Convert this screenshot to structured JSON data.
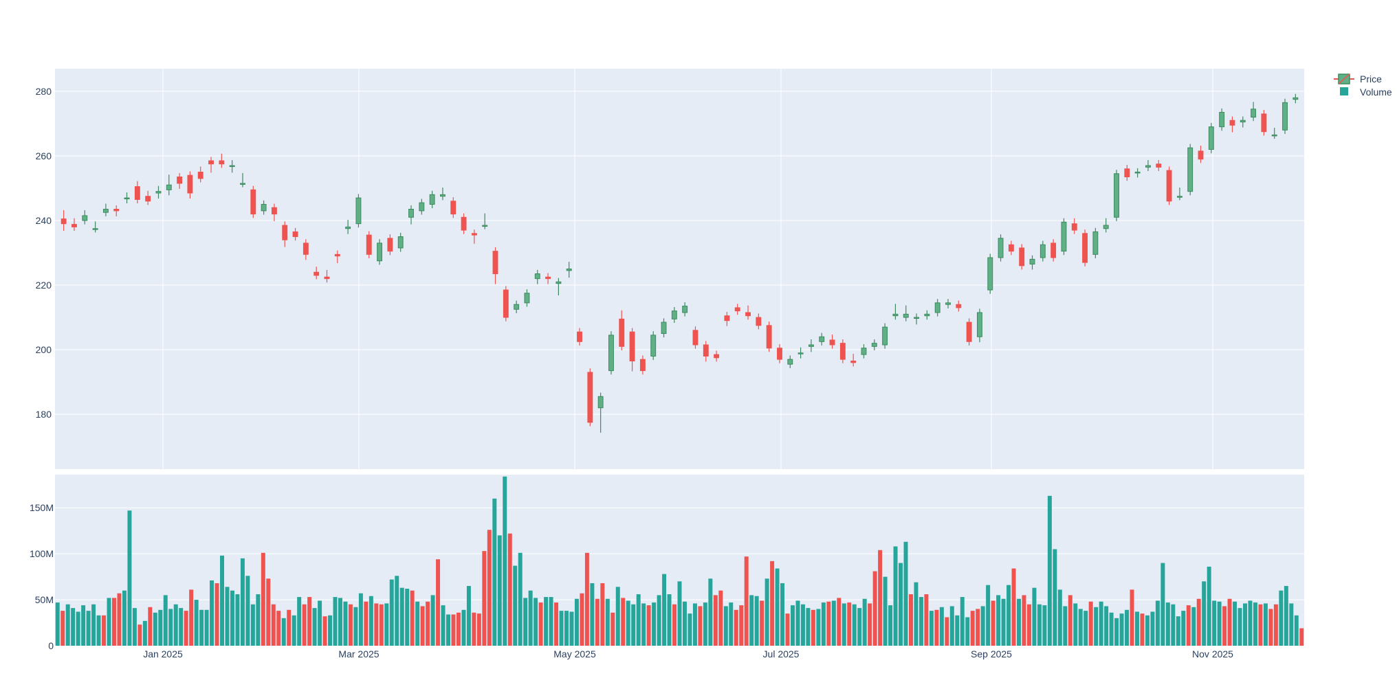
{
  "colors": {
    "plot_bg": "#e5ecf6",
    "grid": "#ffffff",
    "increasing": "#26a69a",
    "decreasing": "#ef5350",
    "candle_up_fill": "#5fb087",
    "candle_up_line": "#3d8a5f",
    "candle_down_fill": "#ef5350",
    "candle_down_line": "#ef5350",
    "text": "#2a3f5f"
  },
  "legend": {
    "items": [
      {
        "label": "Price",
        "icon": "candlestick-icon"
      },
      {
        "label": "Volume",
        "icon": "square-icon"
      }
    ]
  },
  "chart_data": {
    "type": "candlestick+bar",
    "x_ticks": [
      "Jan 2025",
      "Mar 2025",
      "May 2025",
      "Jul 2025",
      "Sep 2025",
      "Nov 2025"
    ],
    "price_axis": {
      "ticks": [
        180,
        200,
        220,
        240,
        260,
        280
      ],
      "range": [
        163,
        287
      ]
    },
    "volume_axis": {
      "ticks": [
        0,
        50,
        100,
        150
      ],
      "tick_labels": [
        "0",
        "50M",
        "100M",
        "150M"
      ],
      "unit": "M",
      "range": [
        0,
        186
      ]
    },
    "series": [
      {
        "name": "Price",
        "kind": "candlestick",
        "points": [
          [
            240.5,
            238,
            240,
            242,
            239
          ],
          [
            238.8,
            239.5,
            238,
            239,
            238
          ],
          [
            240,
            240.5,
            241.5,
            242,
            241.5
          ],
          [
            237.5,
            238.5,
            238,
            238.5,
            237.5
          ],
          [
            242.5,
            244,
            243.5,
            243.5,
            243.5
          ],
          [
            243.5,
            242.5,
            242.5,
            243.5,
            243
          ],
          [
            247,
            246.5,
            247.5,
            247,
            247
          ],
          [
            250.5,
            251,
            251,
            247,
            246.5
          ],
          [
            247.5,
            248,
            247.5,
            247,
            246
          ],
          [
            248.5,
            249,
            248,
            249.5,
            249
          ],
          [
            249.5,
            251.5,
            249,
            253,
            251
          ],
          [
            253.5,
            253,
            251,
            252.5,
            251.5
          ],
          [
            254,
            248,
            249,
            250,
            248.5
          ],
          [
            255,
            254,
            253.5,
            255.5,
            253
          ],
          [
            258.5,
            256,
            256,
            258,
            257.5
          ],
          [
            258.5,
            257.5,
            259.5,
            259.5,
            257.5
          ],
          [
            257,
            256,
            257.5,
            257.5,
            257
          ],
          [
            251.5,
            253.5,
            251.5,
            251.5,
            251.5
          ],
          [
            249.5,
            246,
            244,
            242.5,
            242
          ],
          [
            243,
            243.5,
            244.5,
            244,
            245
          ],
          [
            244,
            242.5,
            241.5,
            241,
            242
          ],
          [
            238.5,
            236,
            234,
            233,
            234
          ],
          [
            236.5,
            236,
            235.5,
            236,
            235
          ],
          [
            233,
            232.5,
            229,
            231.5,
            229.5
          ],
          [
            224,
            224.5,
            223.5,
            223.5,
            223
          ],
          [
            222.5,
            223,
            223.5,
            222,
            222
          ],
          [
            229.5,
            228.5,
            228,
            229.5,
            229
          ],
          [
            237.5,
            238,
            237,
            239,
            238
          ],
          [
            239,
            241,
            243,
            245.5,
            247
          ],
          [
            235.5,
            234,
            232.5,
            231.5,
            229.5
          ],
          [
            227.5,
            231,
            231,
            232.5,
            233
          ],
          [
            234.5,
            233,
            231,
            231,
            230.5
          ],
          [
            231.5,
            232.5,
            232.5,
            234.5,
            235
          ],
          [
            241,
            240,
            240,
            241.5,
            243.5
          ],
          [
            243,
            244,
            245.5,
            245,
            245.5
          ],
          [
            245,
            247,
            246.5,
            247,
            248
          ],
          [
            247.5,
            249,
            248,
            247.5,
            248
          ],
          [
            246,
            245,
            243.5,
            242,
            242
          ],
          [
            241,
            240,
            241,
            238.5,
            237
          ],
          [
            236,
            235.5,
            234.5,
            234,
            235.5
          ],
          [
            238.5,
            240.5,
            239.5,
            241,
            238.5
          ],
          [
            230.5,
            226,
            222.5,
            221.5,
            223.5
          ],
          [
            218.5,
            216,
            214,
            211.5,
            210
          ],
          [
            212.5,
            213.5,
            213.5,
            214,
            214
          ],
          [
            214.5,
            216.5,
            216.5,
            216.5,
            217.5
          ],
          [
            222,
            221.5,
            222.5,
            223,
            223.5
          ],
          [
            222.5,
            222,
            221.5,
            221.5,
            222
          ],
          [
            220.5,
            219,
            218,
            220,
            221
          ],
          [
            224.5,
            223.5,
            225.5,
            226,
            225
          ],
          [
            205.5,
            202.5,
            203.5,
            204,
            202.5
          ],
          [
            193,
            188.5,
            182,
            180,
            177.5
          ],
          [
            182,
            178.5,
            175.5,
            183,
            185.5
          ],
          [
            193.5,
            198,
            195,
            201.5,
            204.5
          ],
          [
            209.5,
            211,
            205.5,
            205.5,
            201
          ],
          [
            205.5,
            201.5,
            203,
            194.5,
            196.5
          ],
          [
            197,
            196,
            197,
            196.5,
            193.5
          ],
          [
            198,
            200.5,
            201.5,
            204.5,
            204.5
          ],
          [
            205,
            207,
            206.5,
            208,
            208.5
          ],
          [
            209.5,
            210.5,
            210.5,
            211,
            212
          ],
          [
            211.5,
            212,
            212,
            212.5,
            213.5
          ],
          [
            206,
            205,
            203.5,
            202.5,
            201.5
          ],
          [
            201.5,
            199,
            197.5,
            198,
            198
          ],
          [
            198.5,
            198.5,
            198,
            197.5,
            197.5
          ],
          [
            210.5,
            209.5,
            208.5,
            209,
            209
          ],
          [
            213,
            212,
            213,
            212.5,
            212
          ],
          [
            211.5,
            212.5,
            211.5,
            211,
            210.5
          ],
          [
            210,
            208.5,
            208,
            208,
            207.5
          ],
          [
            207.5,
            205,
            204.5,
            202.5,
            200.5
          ],
          [
            200.5,
            199,
            198.5,
            198,
            197
          ],
          [
            195.5,
            196.5,
            196,
            196.5,
            197
          ],
          [
            199,
            198.5,
            199.5,
            199.5,
            199
          ],
          [
            201,
            200.5,
            202,
            202,
            201.5
          ],
          [
            202.5,
            203,
            204,
            204,
            204
          ],
          [
            203,
            203.5,
            202.5,
            201.5,
            201.5
          ],
          [
            202,
            200.5,
            200,
            198.5,
            197
          ],
          [
            196.5,
            197.5,
            197.5,
            196.5,
            196
          ],
          [
            198.5,
            198.5,
            199.5,
            200,
            200.5
          ],
          [
            201,
            202,
            201.5,
            201.5,
            202
          ],
          [
            201.5,
            203,
            203.5,
            205,
            207
          ],
          [
            210.5,
            212,
            213,
            212,
            211
          ],
          [
            210,
            211,
            212,
            212.5,
            211
          ],
          [
            210,
            209,
            209,
            209.5,
            210
          ],
          [
            210.5,
            210.5,
            211,
            211,
            211
          ],
          [
            211.5,
            212.5,
            213.5,
            214,
            214.5
          ],
          [
            214,
            214.5,
            214,
            214.5,
            214.5
          ],
          [
            214,
            214,
            213.5,
            213,
            213
          ],
          [
            208.5,
            208,
            206,
            204,
            202.5
          ],
          [
            204,
            203.5,
            203.5,
            205.5,
            211.5
          ],
          [
            218.5,
            220,
            222.5,
            228,
            228.5
          ],
          [
            228.5,
            229,
            229.5,
            233,
            234.5
          ],
          [
            232.5,
            232.5,
            231.5,
            231,
            230.5
          ],
          [
            231.5,
            230.5,
            229,
            227.5,
            226
          ],
          [
            226.5,
            226,
            227.5,
            227.5,
            228
          ],
          [
            228.5,
            229.5,
            230.5,
            232,
            232.5
          ],
          [
            233,
            233,
            232.5,
            230,
            228.5
          ],
          [
            230.5,
            232,
            236.5,
            238.5,
            239.5
          ],
          [
            239,
            239.5,
            239,
            238,
            237
          ],
          [
            236,
            233,
            230,
            228.5,
            227
          ],
          [
            229.5,
            230.5,
            232.5,
            234,
            236.5
          ],
          [
            237.5,
            237.5,
            239,
            239.5,
            238.5
          ],
          [
            241,
            243.5,
            245.5,
            246.5,
            254.5
          ],
          [
            256,
            255,
            254.5,
            254,
            253.5
          ],
          [
            255,
            254.5,
            255,
            255,
            255
          ],
          [
            256.5,
            256.5,
            257.5,
            257.5,
            257
          ],
          [
            257.5,
            257.5,
            257.5,
            257,
            256.5
          ],
          [
            255.5,
            253,
            249.5,
            247.5,
            246
          ],
          [
            247.5,
            248.5,
            249,
            248.5,
            247.5
          ],
          [
            249,
            251.5,
            254.5,
            260,
            262.5
          ],
          [
            261.5,
            262,
            261.5,
            259.5,
            259
          ],
          [
            262,
            264,
            266.5,
            268.5,
            269
          ],
          [
            269,
            269.5,
            270,
            271.5,
            273.5
          ],
          [
            271,
            270,
            269.5,
            268.5,
            269.5
          ],
          [
            270.5,
            270.5,
            270,
            270.5,
            271
          ],
          [
            272,
            273.5,
            275,
            275.5,
            274.5
          ],
          [
            273,
            272.5,
            271.5,
            269,
            267.5
          ],
          [
            266.5,
            267.5,
            267,
            266.5,
            266.5
          ],
          [
            268,
            271,
            273.5,
            275.5,
            276.5
          ],
          [
            277.5,
            277.5,
            278
          ]
        ]
      },
      {
        "name": "Volume",
        "kind": "bar",
        "values": [
          47,
          38,
          45,
          41,
          37,
          44,
          38,
          45,
          33,
          33,
          52,
          52,
          57,
          60,
          147,
          41,
          23,
          27,
          42,
          36,
          39,
          55,
          40,
          45,
          41,
          38,
          61,
          50,
          39,
          39,
          71,
          68,
          98,
          64,
          60,
          56,
          95,
          76,
          45,
          56,
          101,
          73,
          45,
          38,
          30,
          39,
          33,
          53,
          45,
          53,
          41,
          49,
          32,
          33,
          53,
          52,
          48,
          45,
          42,
          57,
          48,
          54,
          46,
          45,
          46,
          72,
          76,
          63,
          62,
          60,
          48,
          43,
          48,
          55,
          94,
          44,
          34,
          34,
          36,
          39,
          65,
          36,
          35,
          103,
          126,
          160,
          120,
          184,
          122,
          87,
          101,
          52,
          60,
          52,
          47,
          53,
          53,
          47,
          38,
          38,
          37,
          51,
          57,
          101,
          68,
          51,
          68,
          51,
          36,
          64,
          52,
          49,
          45,
          56,
          46,
          44,
          47,
          55,
          78,
          56,
          45,
          70,
          48,
          35,
          46,
          43,
          47,
          73,
          55,
          60,
          43,
          47,
          39,
          44,
          97,
          55,
          54,
          49,
          73,
          92,
          84,
          68,
          35,
          44,
          49,
          45,
          41,
          39,
          40,
          47,
          48,
          49,
          52,
          46,
          47,
          45,
          41,
          51,
          46,
          81,
          104,
          75,
          44,
          108,
          90,
          113,
          56,
          69,
          53,
          56,
          38,
          39,
          42,
          31,
          43,
          33,
          53,
          31,
          38,
          40,
          43,
          66,
          49,
          55,
          51,
          66,
          84,
          51,
          55,
          45,
          63,
          45,
          44,
          163,
          105,
          61,
          43,
          55,
          46,
          40,
          38,
          48,
          42,
          48,
          43,
          36,
          30,
          35,
          39,
          61,
          37,
          35,
          33,
          37,
          49,
          90,
          47,
          45,
          32,
          38,
          44,
          42,
          51,
          70,
          86,
          49,
          48,
          43,
          51,
          48,
          41,
          46,
          49,
          47,
          45,
          46,
          40,
          45,
          60,
          65,
          46,
          33,
          19
        ]
      }
    ]
  }
}
